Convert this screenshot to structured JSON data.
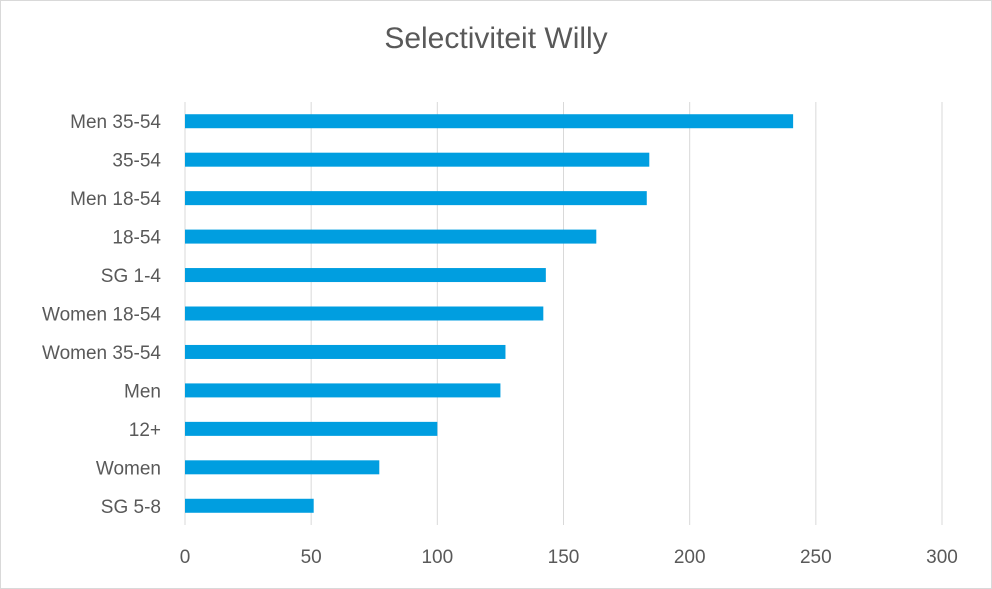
{
  "chart_data": {
    "type": "bar",
    "orientation": "horizontal",
    "title": "Selectiviteit Willy",
    "xlabel": "",
    "ylabel": "",
    "xlim": [
      0,
      300
    ],
    "xticks": [
      "0",
      "50",
      "100",
      "150",
      "200",
      "250",
      "300"
    ],
    "grid": true,
    "legend": "none",
    "bar_color": "#009ee0",
    "grid_color": "#d9d9d9",
    "categories": [
      "Men 35-54",
      "35-54",
      "Men 18-54",
      "18-54",
      "SG 1-4",
      "Women 18-54",
      "Women 35-54",
      "Men",
      "12+",
      "Women",
      "SG 5-8"
    ],
    "values": [
      241,
      184,
      183,
      163,
      143,
      142,
      127,
      125,
      100,
      77,
      51
    ]
  }
}
